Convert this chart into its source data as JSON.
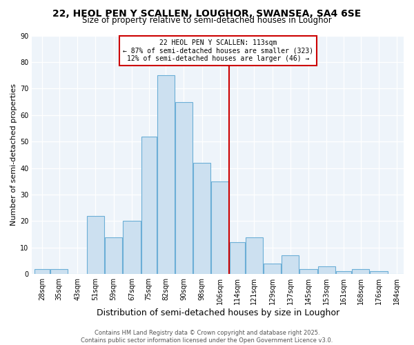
{
  "title": "22, HEOL PEN Y SCALLEN, LOUGHOR, SWANSEA, SA4 6SE",
  "subtitle": "Size of property relative to semi-detached houses in Loughor",
  "xlabel": "Distribution of semi-detached houses by size in Loughor",
  "ylabel": "Number of semi-detached properties",
  "bin_labels": [
    "28sqm",
    "35sqm",
    "43sqm",
    "51sqm",
    "59sqm",
    "67sqm",
    "75sqm",
    "82sqm",
    "90sqm",
    "98sqm",
    "106sqm",
    "114sqm",
    "121sqm",
    "129sqm",
    "137sqm",
    "145sqm",
    "153sqm",
    "161sqm",
    "168sqm",
    "176sqm",
    "184sqm"
  ],
  "bin_edges": [
    28,
    35,
    43,
    51,
    59,
    67,
    75,
    82,
    90,
    98,
    106,
    114,
    121,
    129,
    137,
    145,
    153,
    161,
    168,
    176,
    184,
    192
  ],
  "bar_heights": [
    2,
    2,
    0,
    22,
    14,
    20,
    52,
    75,
    65,
    42,
    35,
    12,
    14,
    4,
    7,
    2,
    3,
    1,
    2,
    1,
    0
  ],
  "bar_facecolor": "#cce0f0",
  "bar_edgecolor": "#6baed6",
  "vline_x": 114,
  "vline_color": "#cc0000",
  "ylim": [
    0,
    90
  ],
  "yticks": [
    0,
    10,
    20,
    30,
    40,
    50,
    60,
    70,
    80,
    90
  ],
  "annotation_title": "22 HEOL PEN Y SCALLEN: 113sqm",
  "annotation_line1": "← 87% of semi-detached houses are smaller (323)",
  "annotation_line2": "12% of semi-detached houses are larger (46) →",
  "annotation_box_facecolor": "#ffffff",
  "annotation_box_edgecolor": "#cc0000",
  "footer1": "Contains HM Land Registry data © Crown copyright and database right 2025.",
  "footer2": "Contains public sector information licensed under the Open Government Licence v3.0.",
  "bg_color": "#ffffff",
  "plot_bg_color": "#eef4fa",
  "title_fontsize": 10,
  "subtitle_fontsize": 8.5,
  "ylabel_fontsize": 8,
  "xlabel_fontsize": 9,
  "tick_fontsize": 7,
  "annot_fontsize": 7,
  "footer_fontsize": 6
}
